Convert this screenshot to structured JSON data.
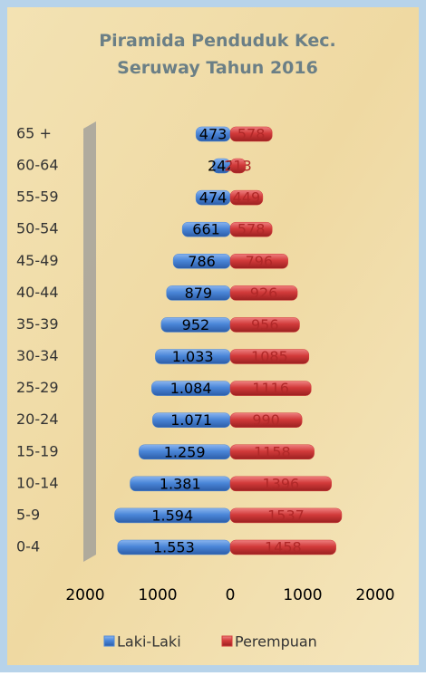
{
  "chart_data": {
    "type": "pyramid",
    "title": "Piramida Penduduk Kec. Seruway Tahun 2016",
    "categories": [
      "0-4",
      "5-9",
      "10-14",
      "15-19",
      "20-24",
      "25-29",
      "30-34",
      "35-39",
      "40-44",
      "45-49",
      "50-54",
      "55-59",
      "60-64",
      "65 +"
    ],
    "series": [
      {
        "name": "Laki-Laki",
        "color": "#4a86d8",
        "values": [
          -1553,
          -1594,
          -1381,
          -1259,
          -1071,
          -1084,
          -1033,
          -952,
          -879,
          -786,
          -661,
          -474,
          -242,
          -473
        ],
        "value_labels": [
          "1.553",
          "1.594",
          "1.381",
          "1.259",
          "1.071",
          "1.084",
          "1.033",
          "952",
          "879",
          "786",
          "661",
          "474",
          "242",
          "473"
        ]
      },
      {
        "name": "Perempuan",
        "color": "#d23a3a",
        "values": [
          1458,
          1537,
          1396,
          1158,
          990,
          1116,
          1085,
          956,
          926,
          796,
          578,
          449,
          213,
          578
        ]
      }
    ],
    "xlim": [
      -2000,
      2000
    ],
    "xticks": [
      {
        "value": -2000,
        "label": "2000"
      },
      {
        "value": -1000,
        "label": "1000"
      },
      0,
      1000,
      2000
    ],
    "legend": "bottom"
  }
}
